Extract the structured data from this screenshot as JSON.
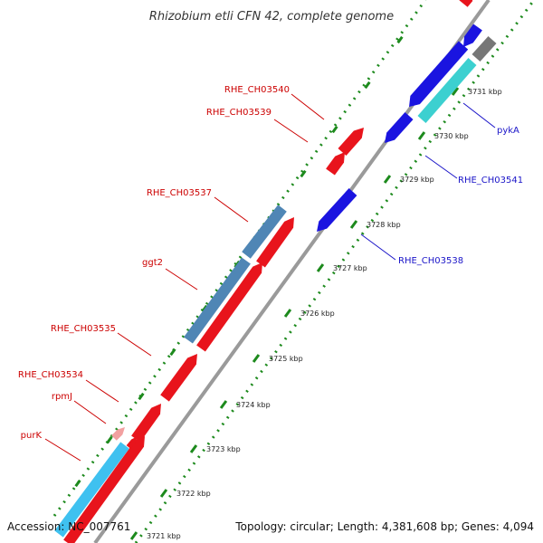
{
  "title": "Rhizobium etli CFN 42, complete genome",
  "footer": {
    "accession": "Accession: NC_007761",
    "summary": "Topology: circular; Length: 4,381,608 bp; Genes: 4,094"
  },
  "colors": {
    "forward_gene": "#e8141c",
    "reverse_gene": "#1a14e0",
    "forward_label": "#cc0000",
    "reverse_label": "#1a14c8",
    "rna_light_blue": "#3fc1f0",
    "rna_steel_blue": "#4f86b5",
    "teal": "#3cd0d0",
    "backbone": "#9a9a9a",
    "dots": "#1d8a1d"
  },
  "ticks": [
    {
      "label": "3721 kbp"
    },
    {
      "label": "3722 kbp"
    },
    {
      "label": "3723 kbp"
    },
    {
      "label": "3724 kbp"
    },
    {
      "label": "3725 kbp"
    },
    {
      "label": "3726 kbp"
    },
    {
      "label": "3727 kbp"
    },
    {
      "label": "3728 kbp"
    },
    {
      "label": "3729 kbp"
    },
    {
      "label": "3730 kbp"
    },
    {
      "label": "3731 kbp"
    }
  ],
  "gene_labels": [
    {
      "name": "RHE_CH03540",
      "strand": "forward"
    },
    {
      "name": "RHE_CH03539",
      "strand": "forward"
    },
    {
      "name": "RHE_CH03537",
      "strand": "forward"
    },
    {
      "name": "ggt2",
      "strand": "forward"
    },
    {
      "name": "RHE_CH03535",
      "strand": "forward"
    },
    {
      "name": "RHE_CH03534",
      "strand": "forward"
    },
    {
      "name": "rpmJ",
      "strand": "forward"
    },
    {
      "name": "purK",
      "strand": "forward"
    },
    {
      "name": "pykA",
      "strand": "reverse"
    },
    {
      "name": "RHE_CH03541",
      "strand": "reverse"
    },
    {
      "name": "RHE_CH03538",
      "strand": "reverse"
    }
  ]
}
